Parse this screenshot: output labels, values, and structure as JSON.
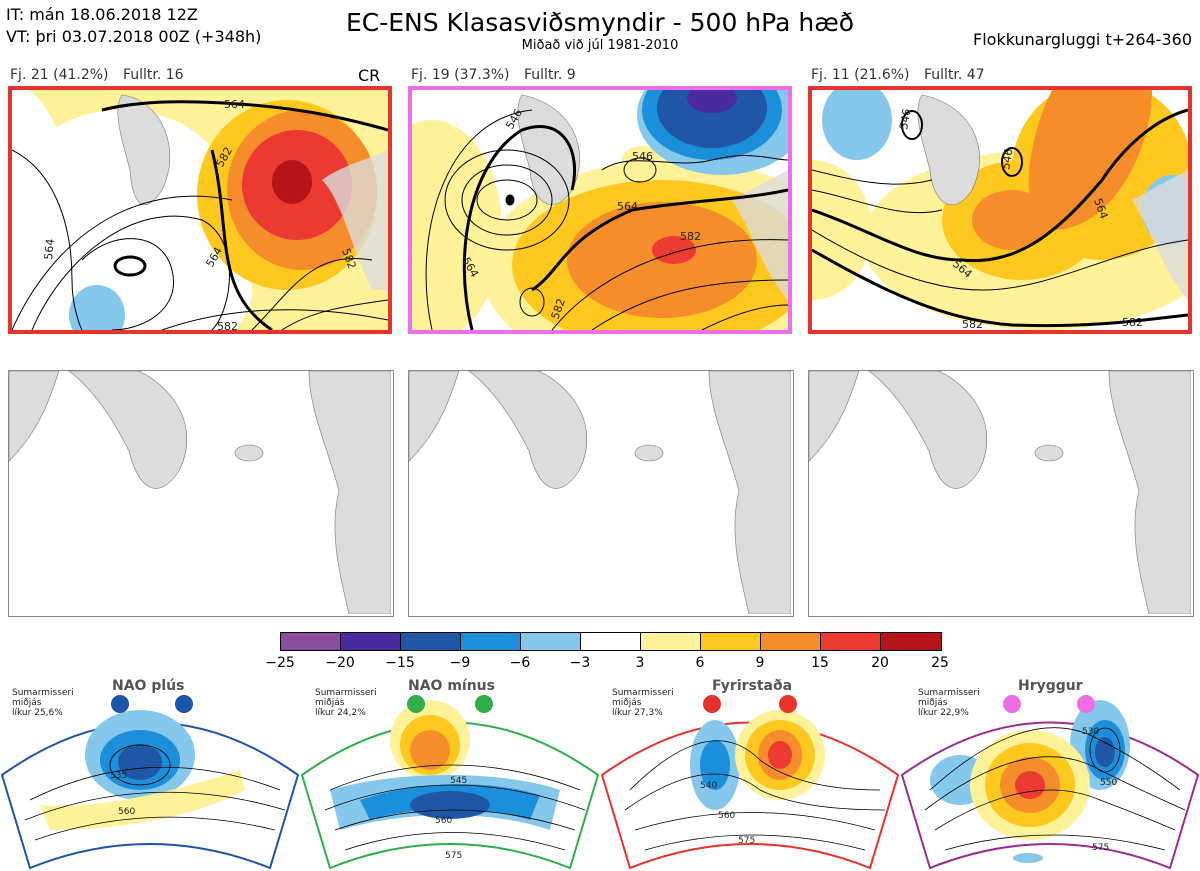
{
  "header": {
    "it": "IT: mán 18.06.2018 12Z",
    "vt": "VT: þri 03.07.2018 00Z  (+348h)",
    "title": "EC-ENS Klasasviðsmyndir - 500 hPa hæð",
    "subtitle": "Miðað við júl 1981-2010",
    "window": "Flokkunargluggi t+264-360"
  },
  "panels": [
    {
      "fj": "Fj. 21 (41.2%)",
      "fulltr": "Fulltr. 16",
      "tag": "CR",
      "border": "#e8322c",
      "contours": [
        "564",
        "582",
        "564",
        "582",
        "582",
        "564"
      ]
    },
    {
      "fj": "Fj. 19 (37.3%)",
      "fulltr": "Fulltr. 9",
      "tag": "",
      "border": "#ee6ee8",
      "contours": [
        "546",
        "546",
        "564",
        "564",
        "582",
        "582"
      ]
    },
    {
      "fj": "Fj. 11 (21.6%)",
      "fulltr": "Fulltr. 47",
      "tag": "",
      "border": "#e8322c",
      "contours": [
        "546",
        "564",
        "546",
        "564",
        "582",
        "582"
      ]
    }
  ],
  "colorbar": {
    "colors": [
      "#8b4d9e",
      "#4b2aa0",
      "#1f56a6",
      "#1b8fd9",
      "#86c7ec",
      "#ffffff",
      "#fff299",
      "#ffc81e",
      "#f58d2b",
      "#ea3a32",
      "#b51419"
    ],
    "labels": [
      "−25",
      "−20",
      "−15",
      "−9",
      "−6",
      "−3",
      "3",
      "6",
      "9",
      "15",
      "20",
      "25"
    ]
  },
  "regimes": [
    {
      "name": "NAO plús",
      "season": "Sumarmisseri",
      "median": "miðjás",
      "prob": "líkur 25,6%",
      "color": "#1e55a8",
      "contours": [
        "535",
        "560"
      ]
    },
    {
      "name": "NAO mínus",
      "season": "Sumarmisseri",
      "median": "miðjás",
      "prob": "líkur 24,2%",
      "color": "#2fae4a",
      "contours": [
        "545",
        "560",
        "575"
      ]
    },
    {
      "name": "Fyrirstaða",
      "season": "Sumarmisseri",
      "median": "miðjás",
      "prob": "líkur 27,3%",
      "color": "#e8322c",
      "contours": [
        "540",
        "560",
        "575"
      ]
    },
    {
      "name": "Hryggur",
      "season": "Sumarmisseri",
      "median": "miðjás",
      "prob": "líkur 22,9%",
      "color": "#9a2d8f",
      "contours": [
        "530",
        "550",
        "575"
      ]
    }
  ]
}
